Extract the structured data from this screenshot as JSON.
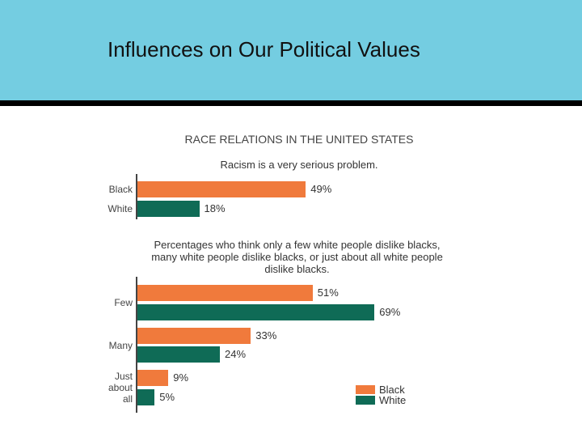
{
  "slide": {
    "title": "Influences on Our Political Values"
  },
  "figure": {
    "title": "RACE RELATIONS IN THE UNITED STATES"
  },
  "chart_data": [
    {
      "type": "bar",
      "orientation": "horizontal",
      "subtitle": "Racism is a very serious problem.",
      "categories": [
        "Black",
        "White"
      ],
      "values": [
        49,
        18
      ],
      "value_labels": [
        "49%",
        "18%"
      ],
      "colors": [
        "#f07a3c",
        "#0f6b56"
      ]
    },
    {
      "type": "grouped-bar",
      "orientation": "horizontal",
      "subtitle": "Percentages who think only a few white people dislike blacks, many white people dislike blacks, or just about all white people dislike blacks.",
      "categories": [
        "Few",
        "Many",
        "Just about all"
      ],
      "series": [
        {
          "name": "Black",
          "color": "#f07a3c",
          "values": [
            51,
            33,
            9
          ],
          "value_labels": [
            "51%",
            "33%",
            "9%"
          ]
        },
        {
          "name": "White",
          "color": "#0f6b56",
          "values": [
            69,
            24,
            5
          ],
          "value_labels": [
            "69%",
            "24%",
            "5%"
          ]
        }
      ],
      "legend": "lower-right"
    }
  ]
}
